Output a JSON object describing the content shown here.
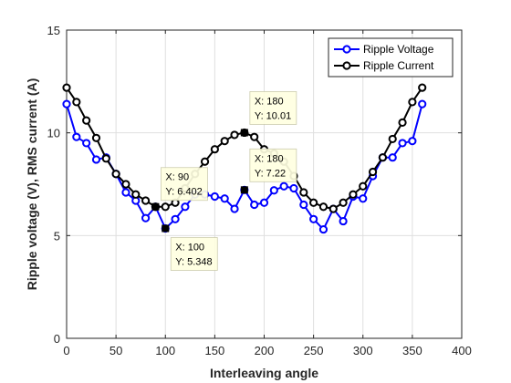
{
  "chart_data": {
    "type": "line",
    "xlabel": "Interleaving angle",
    "ylabel": "Ripple voltage (V), RMS current (A)",
    "xlim": [
      0,
      400
    ],
    "ylim": [
      0,
      15
    ],
    "xticks": [
      0,
      50,
      100,
      150,
      200,
      250,
      300,
      350,
      400
    ],
    "yticks": [
      0,
      5,
      10,
      15
    ],
    "grid": true,
    "legend_position": "top-right",
    "x": [
      0,
      10,
      20,
      30,
      40,
      50,
      60,
      70,
      80,
      90,
      100,
      110,
      120,
      130,
      140,
      150,
      160,
      170,
      180,
      190,
      200,
      210,
      220,
      230,
      240,
      250,
      260,
      270,
      280,
      290,
      300,
      310,
      320,
      330,
      340,
      350,
      360
    ],
    "series": [
      {
        "name": "Ripple Voltage",
        "color": "#0000ff",
        "values": [
          11.4,
          9.8,
          9.5,
          8.7,
          8.8,
          8.0,
          7.1,
          6.7,
          5.85,
          6.402,
          5.348,
          5.8,
          6.4,
          7.0,
          7.0,
          6.9,
          6.8,
          6.3,
          7.22,
          6.5,
          6.6,
          7.2,
          7.4,
          7.3,
          6.5,
          5.8,
          5.3,
          6.3,
          5.7,
          6.9,
          6.8,
          7.9,
          8.8,
          8.8,
          9.5,
          9.6,
          11.4
        ]
      },
      {
        "name": "Ripple Current",
        "color": "#000000",
        "values": [
          12.2,
          11.5,
          10.6,
          9.75,
          8.75,
          8.0,
          7.5,
          7.0,
          6.7,
          6.4,
          6.4,
          6.6,
          7.3,
          8.0,
          8.6,
          9.2,
          9.6,
          9.9,
          10.01,
          9.8,
          9.2,
          9.0,
          8.6,
          7.9,
          7.1,
          6.6,
          6.4,
          6.3,
          6.6,
          7.0,
          7.4,
          8.1,
          8.8,
          9.7,
          10.5,
          11.5,
          12.2
        ]
      }
    ],
    "datatips": [
      {
        "marker_x": 180,
        "marker_y": 10.01,
        "label_x": "X: 180",
        "label_y": "Y: 10.01"
      },
      {
        "marker_x": 180,
        "marker_y": 7.22,
        "label_x": "X: 180",
        "label_y": "Y: 7.22"
      },
      {
        "marker_x": 90,
        "marker_y": 6.402,
        "label_x": "X: 90",
        "label_y": "Y: 6.402"
      },
      {
        "marker_x": 100,
        "marker_y": 5.348,
        "label_x": "X: 100",
        "label_y": "Y: 5.348"
      }
    ]
  }
}
